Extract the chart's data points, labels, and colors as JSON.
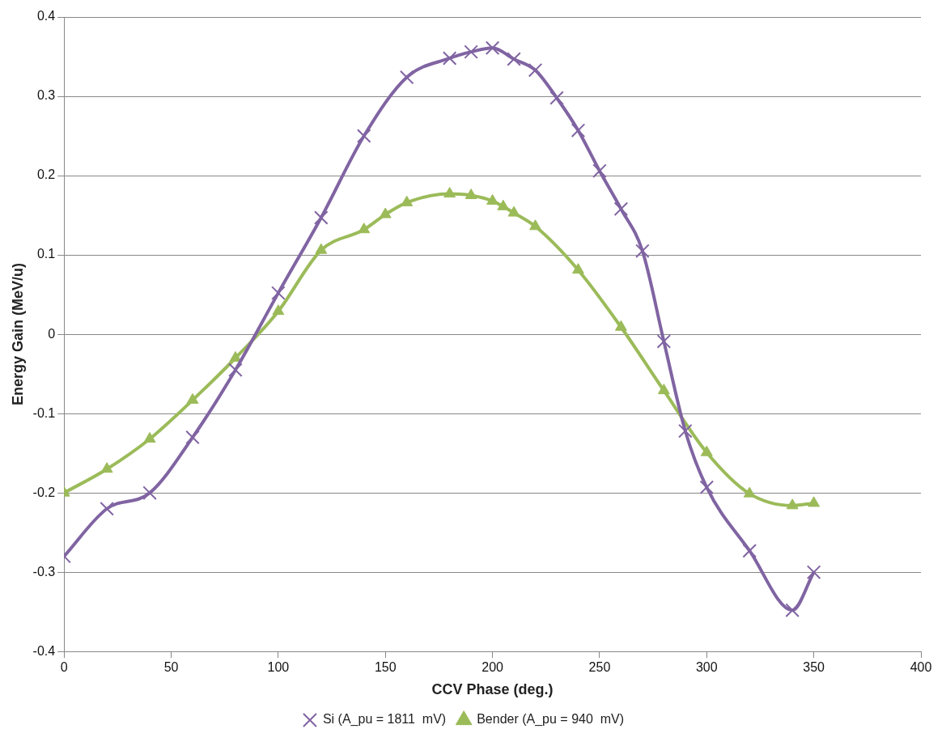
{
  "chart_data": {
    "type": "line",
    "xlabel": "CCV Phase (deg.)",
    "ylabel": "Energy Gain (MeV/u)",
    "xlim": [
      0,
      400
    ],
    "xticks": [
      0,
      50,
      100,
      150,
      200,
      250,
      300,
      350,
      400
    ],
    "ylim": [
      -0.4,
      0.4
    ],
    "yticks": [
      -0.4,
      -0.3,
      -0.2,
      -0.1,
      0,
      0.1,
      0.2,
      0.3,
      0.4
    ],
    "grid": "y",
    "legend": "bottom",
    "series": [
      {
        "name": "Si (A_pu = 1811  mV)",
        "color": "#8064a2",
        "marker": "cross",
        "x": [
          0,
          20,
          40,
          60,
          80,
          100,
          120,
          140,
          160,
          180,
          190,
          200,
          210,
          220,
          230,
          240,
          250,
          260,
          270,
          280,
          290,
          300,
          320,
          340,
          350
        ],
        "values": [
          -0.28,
          -0.22,
          -0.2,
          -0.13,
          -0.045,
          0.052,
          0.147,
          0.25,
          0.324,
          0.348,
          0.356,
          0.361,
          0.347,
          0.333,
          0.298,
          0.257,
          0.206,
          0.158,
          0.105,
          -0.009,
          -0.122,
          -0.193,
          -0.273,
          -0.348,
          -0.3
        ]
      },
      {
        "name": "Bender (A_pu = 940  mV)",
        "color": "#9bbb59",
        "marker": "triangle",
        "x": [
          0,
          20,
          40,
          60,
          80,
          100,
          120,
          140,
          150,
          160,
          180,
          190,
          200,
          205,
          210,
          220,
          240,
          260,
          280,
          300,
          320,
          340,
          350
        ],
        "values": [
          -0.2,
          -0.17,
          -0.132,
          -0.083,
          -0.03,
          0.029,
          0.106,
          0.132,
          0.151,
          0.166,
          0.177,
          0.175,
          0.168,
          0.161,
          0.153,
          0.136,
          0.081,
          0.009,
          -0.071,
          -0.149,
          -0.201,
          -0.216,
          -0.213
        ]
      }
    ]
  }
}
